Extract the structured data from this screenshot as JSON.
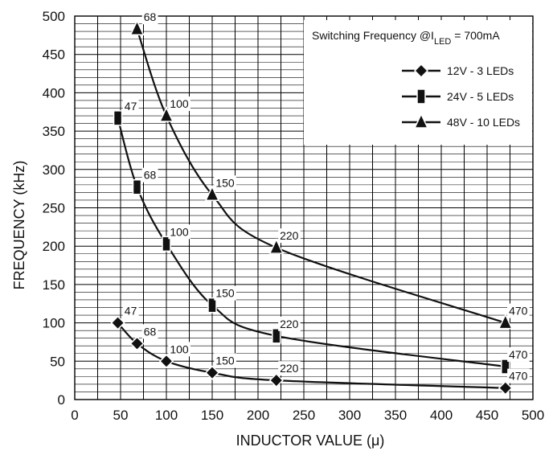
{
  "chart_data": {
    "type": "line",
    "title": "",
    "xlabel": "INDUCTOR VALUE (μ)",
    "ylabel": "FREQUENCY (kHz)",
    "xlim": [
      0,
      500
    ],
    "ylim": [
      0,
      500
    ],
    "xticks": [
      0,
      50,
      100,
      150,
      200,
      250,
      300,
      350,
      400,
      450,
      500
    ],
    "yticks": [
      0,
      50,
      100,
      150,
      200,
      250,
      300,
      350,
      400,
      450,
      500
    ],
    "grid": true,
    "legend_title": {
      "main": "Switching Frequency @I",
      "sub": "LED",
      "tail": " = 700mA"
    },
    "legend_position": "top-right",
    "series": [
      {
        "name": "12V - 3 LEDs",
        "marker": "diamond",
        "x": [
          47,
          68,
          100,
          150,
          220,
          470
        ],
        "y": [
          100,
          73,
          50,
          35,
          25,
          15
        ],
        "labels": [
          "47",
          "68",
          "100",
          "150",
          "220",
          "470"
        ]
      },
      {
        "name": "24V - 5 LEDs",
        "marker": "square",
        "x": [
          47,
          68,
          100,
          150,
          220,
          470
        ],
        "y": [
          367,
          277,
          203,
          123,
          83,
          43
        ],
        "labels": [
          "47",
          "68",
          "100",
          "150",
          "220",
          "470"
        ]
      },
      {
        "name": "48V - 10 LEDs",
        "marker": "triangle",
        "x": [
          68,
          100,
          150,
          220,
          470
        ],
        "y": [
          483,
          370,
          267,
          198,
          100
        ],
        "labels": [
          "68",
          "100",
          "150",
          "220",
          "470"
        ]
      }
    ]
  }
}
